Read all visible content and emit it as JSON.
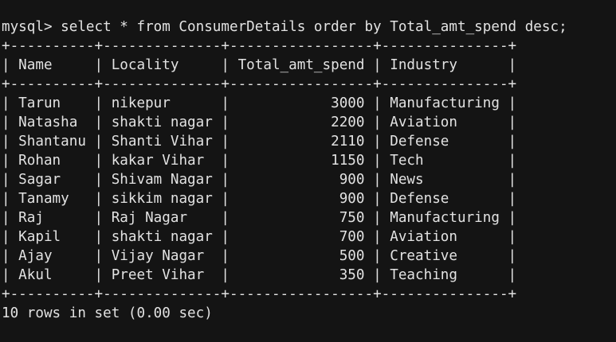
{
  "terminal": {
    "prompt": "mysql>",
    "command": "select * from ConsumerDetails order by Total_amt_spend desc;",
    "table": {
      "columns": [
        "Name",
        "Locality",
        "Total_amt_spend",
        "Industry"
      ],
      "rows": [
        [
          "Tarun",
          "nikepur",
          3000,
          "Manufacturing"
        ],
        [
          "Natasha",
          "shakti nagar",
          2200,
          "Aviation"
        ],
        [
          "Shantanu",
          "Shanti Vihar",
          2110,
          "Defense"
        ],
        [
          "Rohan",
          "kakar Vihar",
          1150,
          "Tech"
        ],
        [
          "Sagar",
          "Shivam Nagar",
          900,
          "News"
        ],
        [
          "Tanamy",
          "sikkim nagar",
          900,
          "Defense"
        ],
        [
          "Raj",
          "Raj Nagar",
          750,
          "Manufacturing"
        ],
        [
          "Kapil",
          "shakti nagar",
          700,
          "Aviation"
        ],
        [
          "Ajay",
          "Vijay Nagar",
          500,
          "Creative"
        ],
        [
          "Akul",
          "Preet Vihar",
          350,
          "Teaching"
        ]
      ]
    },
    "status": "10 rows in set (0.00 sec)",
    "colors": {
      "background": "#141414",
      "foreground": "#e2e2e2"
    }
  }
}
